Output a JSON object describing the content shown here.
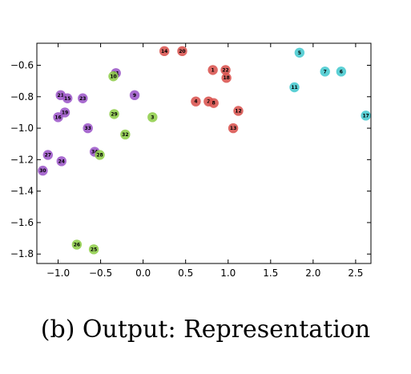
{
  "caption": "(b) Output: Representation",
  "chart_data": {
    "type": "scatter",
    "title": "",
    "xlabel": "",
    "ylabel": "",
    "xlim": [
      -1.25,
      2.68
    ],
    "ylim": [
      -1.86,
      -0.46
    ],
    "xticks": [
      -1.0,
      -0.5,
      0.0,
      0.5,
      1.0,
      1.5,
      2.0,
      2.5
    ],
    "xtick_labels": [
      "−1.0",
      "−0.5",
      "0.0",
      "0.5",
      "1.0",
      "1.5",
      "2.0",
      "2.5"
    ],
    "yticks": [
      -0.6,
      -0.8,
      -1.0,
      -1.2,
      -1.4,
      -1.6,
      -1.8
    ],
    "ytick_labels": [
      "−0.6",
      "−0.8",
      "−1.0",
      "−1.2",
      "−1.4",
      "−1.6",
      "−1.8"
    ],
    "grid": false,
    "legend": "none",
    "groups": [
      {
        "color": "#d9534f",
        "points": [
          {
            "label": "14",
            "x": 0.25,
            "y": -0.51
          },
          {
            "label": "20",
            "x": 0.46,
            "y": -0.51
          },
          {
            "label": "1",
            "x": 0.82,
            "y": -0.63
          },
          {
            "label": "22",
            "x": 0.97,
            "y": -0.63
          },
          {
            "label": "18",
            "x": 0.98,
            "y": -0.68
          },
          {
            "label": "4",
            "x": 0.62,
            "y": -0.83
          },
          {
            "label": "2",
            "x": 0.77,
            "y": -0.83
          },
          {
            "label": "8",
            "x": 0.83,
            "y": -0.84
          },
          {
            "label": "12",
            "x": 1.12,
            "y": -0.89
          },
          {
            "label": "13",
            "x": 1.06,
            "y": -1.0
          }
        ]
      },
      {
        "color": "#45c9cf",
        "points": [
          {
            "label": "5",
            "x": 1.84,
            "y": -0.52
          },
          {
            "label": "7",
            "x": 2.14,
            "y": -0.64
          },
          {
            "label": "6",
            "x": 2.33,
            "y": -0.64
          },
          {
            "label": "11",
            "x": 1.78,
            "y": -0.74
          },
          {
            "label": "17",
            "x": 2.62,
            "y": -0.92
          }
        ]
      },
      {
        "color": "#9c56c8",
        "points": [
          {
            "label": "31",
            "x": -0.32,
            "y": -0.65
          },
          {
            "label": "9",
            "x": -0.1,
            "y": -0.79
          },
          {
            "label": "21",
            "x": -0.97,
            "y": -0.79
          },
          {
            "label": "15",
            "x": -0.89,
            "y": -0.81
          },
          {
            "label": "23",
            "x": -0.71,
            "y": -0.81
          },
          {
            "label": "19",
            "x": -0.92,
            "y": -0.9
          },
          {
            "label": "16",
            "x": -1.0,
            "y": -0.93
          },
          {
            "label": "33",
            "x": -0.65,
            "y": -1.0
          },
          {
            "label": "34",
            "x": -0.57,
            "y": -1.15
          },
          {
            "label": "27",
            "x": -1.12,
            "y": -1.17
          },
          {
            "label": "24",
            "x": -0.96,
            "y": -1.21
          },
          {
            "label": "30",
            "x": -1.18,
            "y": -1.27
          }
        ]
      },
      {
        "color": "#8fce4a",
        "points": [
          {
            "label": "10",
            "x": -0.35,
            "y": -0.67
          },
          {
            "label": "29",
            "x": -0.34,
            "y": -0.91
          },
          {
            "label": "3",
            "x": 0.11,
            "y": -0.93
          },
          {
            "label": "32",
            "x": -0.21,
            "y": -1.04
          },
          {
            "label": "28",
            "x": -0.51,
            "y": -1.17
          },
          {
            "label": "26",
            "x": -0.78,
            "y": -1.74
          },
          {
            "label": "25",
            "x": -0.58,
            "y": -1.77
          }
        ]
      }
    ]
  }
}
